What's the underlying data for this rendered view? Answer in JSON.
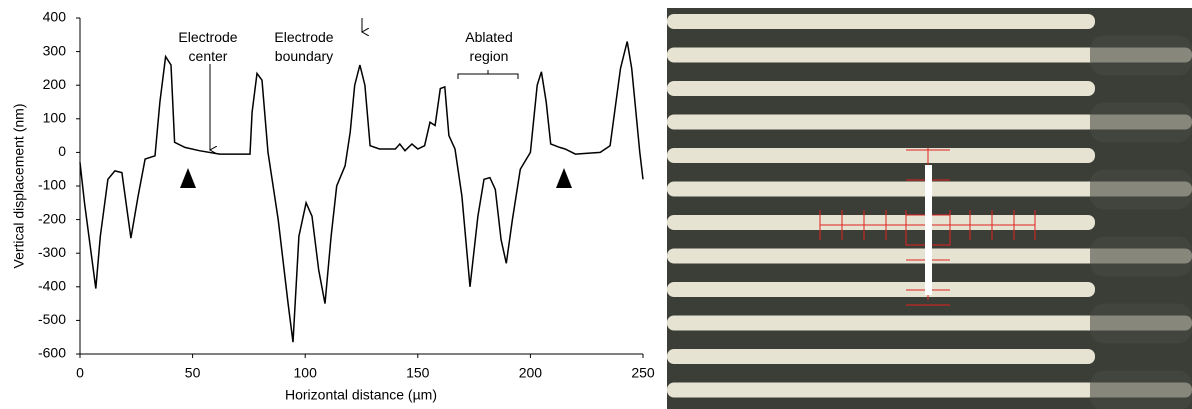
{
  "chart_data": {
    "type": "line",
    "x_label": "Horizontal distance (µm)",
    "y_label": "Vertical displacement (nm)",
    "annotations": [
      "Electrode center",
      "Electrode boundary",
      "Ablated region"
    ],
    "x": [
      0,
      2,
      7,
      9,
      12.4,
      15.5,
      18.6,
      22.6,
      25.8,
      28.9,
      33.3,
      35.5,
      38,
      40.4,
      42,
      46.6,
      53,
      62,
      75.5,
      76.4,
      78.6,
      80.8,
      83.5,
      88,
      92.4,
      94.6,
      97.2,
      100.4,
      103,
      106,
      108.8,
      111.5,
      114,
      117.7,
      120,
      122,
      124.3,
      126.5,
      128.8,
      133,
      140,
      142,
      144.3,
      147.4,
      150,
      153,
      155.4,
      157.7,
      160,
      162,
      163.8,
      166.5,
      169.6,
      173.2,
      176.7,
      179.4,
      182,
      184.4,
      187,
      189.3,
      192,
      195.5,
      200,
      203,
      204.9,
      207,
      209,
      213,
      215.4,
      220,
      231,
      235.4,
      240,
      243,
      245,
      248.6,
      250
    ],
    "values": [
      -30,
      -150,
      -405,
      -250,
      -80,
      -55,
      -60,
      -255,
      -130,
      -20,
      -10,
      150,
      285,
      260,
      30,
      15,
      5,
      -5,
      -5,
      120,
      235,
      215,
      0,
      -200,
      -450,
      -565,
      -250,
      -150,
      -190,
      -350,
      -450,
      -250,
      -100,
      -40,
      60,
      200,
      260,
      200,
      20,
      10,
      10,
      25,
      5,
      25,
      10,
      20,
      90,
      80,
      190,
      195,
      50,
      10,
      -130,
      -400,
      -190,
      -80,
      -75,
      -110,
      -260,
      -330,
      -200,
      -50,
      0,
      200,
      240,
      150,
      25,
      15,
      10,
      -5,
      0,
      20,
      250,
      330,
      250,
      0,
      -80
    ],
    "color": "#000000",
    "xlim": [
      0,
      250
    ],
    "xticks": [
      0,
      50,
      100,
      150,
      200,
      250
    ],
    "ylim": [
      -600,
      400
    ],
    "yticks": [
      -600,
      -500,
      -400,
      -300,
      -200,
      -100,
      0,
      100,
      200,
      300,
      400
    ],
    "grid": false
  }
}
